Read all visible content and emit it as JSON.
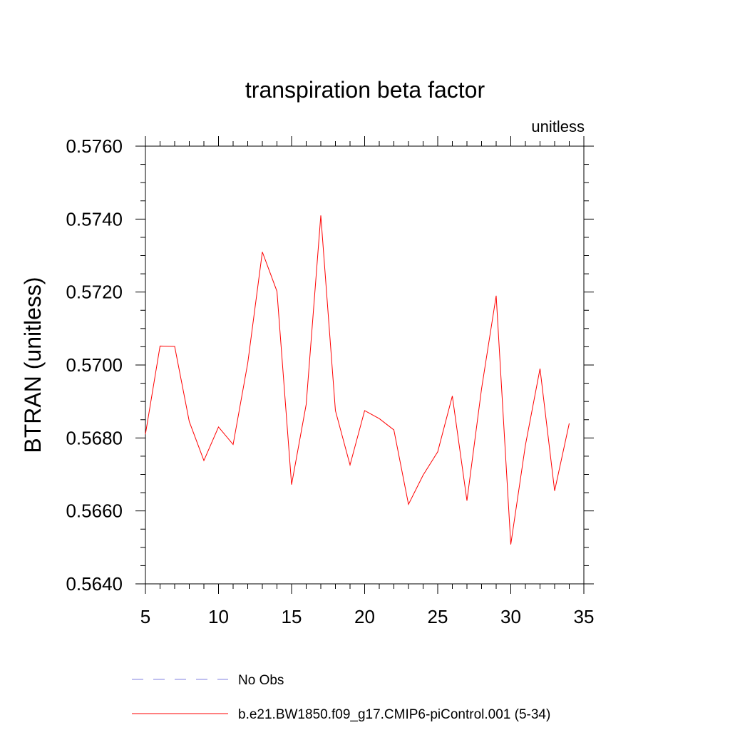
{
  "chart_data": {
    "type": "line",
    "title": "transpiration beta factor",
    "subtitle_right": "unitless",
    "ylabel": "BTRAN  (unitless)",
    "xlabel": "",
    "xlim": [
      5,
      35
    ],
    "ylim": [
      0.564,
      0.576
    ],
    "x_ticks": [
      5,
      10,
      15,
      20,
      25,
      30,
      35
    ],
    "x_tick_labels": [
      "5",
      "10",
      "15",
      "20",
      "25",
      "30",
      "35"
    ],
    "y_ticks": [
      0.564,
      0.566,
      0.568,
      0.57,
      0.572,
      0.574,
      0.576
    ],
    "y_tick_labels": [
      "0.5640",
      "0.5660",
      "0.5680",
      "0.5700",
      "0.5720",
      "0.5740",
      "0.5760"
    ],
    "grid": false,
    "legend_position": "bottom",
    "series": [
      {
        "name": "No Obs",
        "color": "#8080e0",
        "dash": "dashed",
        "x": [],
        "values": []
      },
      {
        "name": "b.e21.BW1850.f09_g17.CMIP6-piControl.001 (5-34)",
        "color": "#ff0000",
        "dash": "solid",
        "x": [
          5,
          6,
          7,
          8,
          9,
          10,
          11,
          12,
          13,
          14,
          15,
          16,
          17,
          18,
          19,
          20,
          21,
          22,
          23,
          24,
          25,
          26,
          27,
          28,
          29,
          30,
          31,
          32,
          33,
          34
        ],
        "values": [
          0.5681,
          0.57052,
          0.57051,
          0.56845,
          0.56738,
          0.5683,
          0.56782,
          0.57005,
          0.5731,
          0.57202,
          0.56672,
          0.56892,
          0.5741,
          0.56875,
          0.56726,
          0.56875,
          0.56853,
          0.56822,
          0.56618,
          0.56698,
          0.56762,
          0.56915,
          0.56628,
          0.56935,
          0.5719,
          0.56508,
          0.5678,
          0.5699,
          0.56655,
          0.5684
        ]
      }
    ]
  }
}
